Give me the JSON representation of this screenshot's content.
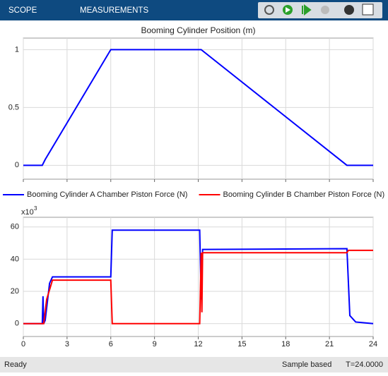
{
  "toolbar": {
    "tabs": [
      "SCOPE",
      "MEASUREMENTS"
    ]
  },
  "status": {
    "left": "Ready",
    "mode": "Sample based",
    "time": "T=24.0000"
  },
  "chart_data": [
    {
      "type": "line",
      "title": "Booming Cylinder Position (m)",
      "xlim": [
        0,
        24
      ],
      "xticks": [
        0,
        3,
        6,
        9,
        12,
        15,
        18,
        21,
        24
      ],
      "ylim": [
        -0.12,
        1.1
      ],
      "yticks": [
        0,
        0.5,
        1
      ],
      "grid": true,
      "series": [
        {
          "color": "#0000ff",
          "x": [
            0,
            1.3,
            1.5,
            6,
            12.2,
            22.2,
            24
          ],
          "values": [
            0,
            0,
            0.05,
            1,
            1,
            0,
            0
          ]
        }
      ]
    },
    {
      "type": "line",
      "exponent_base": "x10",
      "exponent": "3",
      "xlim": [
        0,
        24
      ],
      "xticks": [
        0,
        3,
        6,
        9,
        12,
        15,
        18,
        21,
        24
      ],
      "ylim": [
        -8,
        66
      ],
      "yticks": [
        0,
        20,
        40,
        60
      ],
      "grid": true,
      "legend": "top",
      "series": [
        {
          "name": "Booming Cylinder A Chamber Piston Force (N)",
          "color": "#0000ff",
          "x": [
            0,
            1.3,
            1.35,
            1.4,
            1.5,
            1.8,
            2,
            6,
            6.1,
            12.1,
            12.2,
            12.3,
            22.2,
            22.4,
            22.8,
            24
          ],
          "values": [
            0,
            0,
            17,
            0,
            2,
            25,
            29,
            29,
            58,
            58,
            15,
            46,
            46.5,
            5,
            1,
            0
          ]
        },
        {
          "name": "Booming Cylinder B Chamber Piston Force (N)",
          "color": "#ff0000",
          "x": [
            0,
            1.4,
            1.6,
            2,
            6,
            6.1,
            12.1,
            12.2,
            12.25,
            12.3,
            22.2,
            22.3,
            24
          ],
          "values": [
            0,
            0,
            15,
            27,
            27,
            0,
            0,
            44,
            7,
            44,
            44,
            45.5,
            45.5
          ]
        }
      ]
    }
  ]
}
